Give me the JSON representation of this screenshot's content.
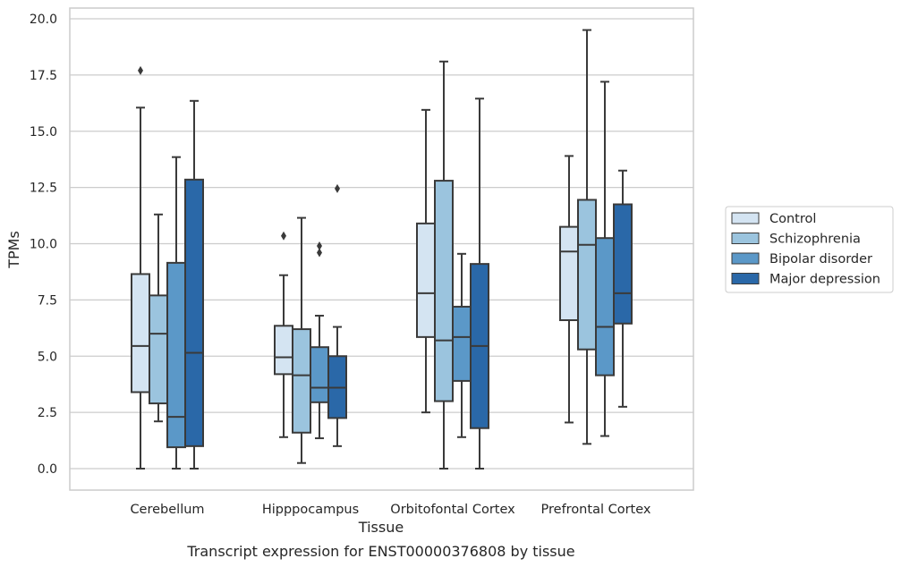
{
  "chart_data": {
    "type": "box",
    "title": "Transcript expression for ENST00000376808 by tissue",
    "xlabel": "Tissue",
    "ylabel": "TPMs",
    "ylim": [
      -0.9,
      20.5
    ],
    "yticks": [
      0.0,
      2.5,
      5.0,
      7.5,
      10.0,
      12.5,
      15.0,
      17.5,
      20.0
    ],
    "ytick_labels": [
      "0.0",
      "2.5",
      "5.0",
      "7.5",
      "10.0",
      "12.5",
      "15.0",
      "17.5",
      "20.0"
    ],
    "grid": true,
    "legend_position": "right",
    "categories": [
      "Cerebellum",
      "Hipppocampus",
      "Orbitofontal Cortex",
      "Prefrontal Cortex"
    ],
    "series": [
      {
        "name": "Control",
        "color": "#d4e4f2",
        "boxes": [
          {
            "whisker_low": 0.0,
            "q1": 3.4,
            "median": 5.45,
            "q3": 8.65,
            "whisker_high": 16.05,
            "outliers": [
              17.7
            ]
          },
          {
            "whisker_low": 1.4,
            "q1": 4.2,
            "median": 4.95,
            "q3": 6.35,
            "whisker_high": 8.6,
            "outliers": [
              10.35
            ]
          },
          {
            "whisker_low": 2.5,
            "q1": 5.85,
            "median": 7.8,
            "q3": 10.9,
            "whisker_high": 15.95,
            "outliers": []
          },
          {
            "whisker_low": 2.05,
            "q1": 6.6,
            "median": 9.65,
            "q3": 10.75,
            "whisker_high": 13.9,
            "outliers": []
          }
        ]
      },
      {
        "name": "Schizophrenia",
        "color": "#9bc4de",
        "boxes": [
          {
            "whisker_low": 2.1,
            "q1": 2.9,
            "median": 6.0,
            "q3": 7.7,
            "whisker_high": 11.3,
            "outliers": []
          },
          {
            "whisker_low": 0.25,
            "q1": 1.6,
            "median": 4.15,
            "q3": 6.2,
            "whisker_high": 11.15,
            "outliers": []
          },
          {
            "whisker_low": 0.0,
            "q1": 3.0,
            "median": 5.7,
            "q3": 12.8,
            "whisker_high": 18.1,
            "outliers": []
          },
          {
            "whisker_low": 1.1,
            "q1": 5.3,
            "median": 9.95,
            "q3": 11.95,
            "whisker_high": 19.5,
            "outliers": []
          }
        ]
      },
      {
        "name": "Bipolar disorder",
        "color": "#5b98c8",
        "boxes": [
          {
            "whisker_low": 0.0,
            "q1": 0.95,
            "median": 2.3,
            "q3": 9.15,
            "whisker_high": 13.85,
            "outliers": []
          },
          {
            "whisker_low": 1.35,
            "q1": 2.95,
            "median": 3.6,
            "q3": 5.4,
            "whisker_high": 6.8,
            "outliers": [
              9.6,
              9.9
            ]
          },
          {
            "whisker_low": 1.4,
            "q1": 3.9,
            "median": 5.85,
            "q3": 7.2,
            "whisker_high": 9.55,
            "outliers": []
          },
          {
            "whisker_low": 1.45,
            "q1": 4.15,
            "median": 6.3,
            "q3": 10.25,
            "whisker_high": 17.2,
            "outliers": []
          }
        ]
      },
      {
        "name": "Major depression",
        "color": "#2a68a8",
        "boxes": [
          {
            "whisker_low": 0.0,
            "q1": 1.0,
            "median": 5.15,
            "q3": 12.85,
            "whisker_high": 16.35,
            "outliers": []
          },
          {
            "whisker_low": 1.0,
            "q1": 2.25,
            "median": 3.6,
            "q3": 5.0,
            "whisker_high": 6.3,
            "outliers": [
              12.45
            ]
          },
          {
            "whisker_low": 0.0,
            "q1": 1.8,
            "median": 5.45,
            "q3": 9.1,
            "whisker_high": 16.45,
            "outliers": []
          },
          {
            "whisker_low": 2.75,
            "q1": 6.45,
            "median": 7.8,
            "q3": 11.75,
            "whisker_high": 13.25,
            "outliers": []
          }
        ]
      }
    ]
  }
}
